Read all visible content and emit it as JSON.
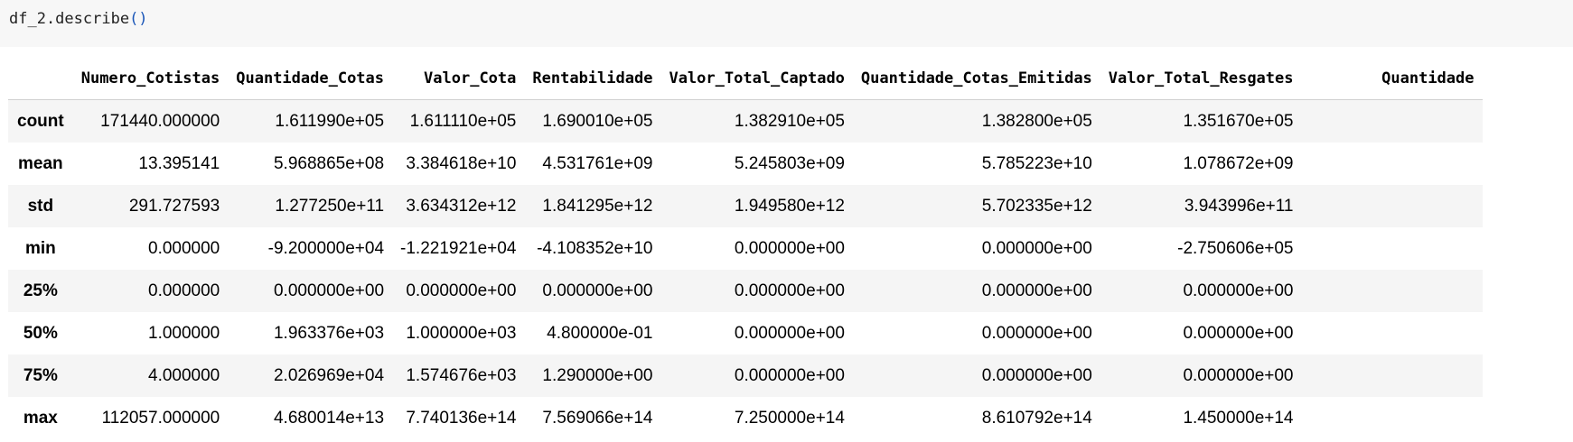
{
  "code_cell": {
    "prefix": "df_2.describe",
    "parens": "()"
  },
  "table": {
    "columns": [
      "",
      "Numero_Cotistas",
      "Quantidade_Cotas",
      "Valor_Cota",
      "Rentabilidade",
      "Valor_Total_Captado",
      "Quantidade_Cotas_Emitidas",
      "Valor_Total_Resgates",
      "Quantidade"
    ],
    "rows": [
      {
        "label": "count",
        "values": [
          "171440.000000",
          "1.611990e+05",
          "1.611110e+05",
          "1.690010e+05",
          "1.382910e+05",
          "1.382800e+05",
          "1.351670e+05",
          ""
        ]
      },
      {
        "label": "mean",
        "values": [
          "13.395141",
          "5.968865e+08",
          "3.384618e+10",
          "4.531761e+09",
          "5.245803e+09",
          "5.785223e+10",
          "1.078672e+09",
          ""
        ]
      },
      {
        "label": "std",
        "values": [
          "291.727593",
          "1.277250e+11",
          "3.634312e+12",
          "1.841295e+12",
          "1.949580e+12",
          "5.702335e+12",
          "3.943996e+11",
          ""
        ]
      },
      {
        "label": "min",
        "values": [
          "0.000000",
          "-9.200000e+04",
          "-1.221921e+04",
          "-4.108352e+10",
          "0.000000e+00",
          "0.000000e+00",
          "-2.750606e+05",
          ""
        ]
      },
      {
        "label": "25%",
        "values": [
          "0.000000",
          "0.000000e+00",
          "0.000000e+00",
          "0.000000e+00",
          "0.000000e+00",
          "0.000000e+00",
          "0.000000e+00",
          ""
        ]
      },
      {
        "label": "50%",
        "values": [
          "1.000000",
          "1.963376e+03",
          "1.000000e+03",
          "4.800000e-01",
          "0.000000e+00",
          "0.000000e+00",
          "0.000000e+00",
          ""
        ]
      },
      {
        "label": "75%",
        "values": [
          "4.000000",
          "2.026969e+04",
          "1.574676e+03",
          "1.290000e+00",
          "0.000000e+00",
          "0.000000e+00",
          "0.000000e+00",
          ""
        ]
      },
      {
        "label": "max",
        "values": [
          "112057.000000",
          "4.680014e+13",
          "7.740136e+14",
          "7.569066e+14",
          "7.250000e+14",
          "8.610792e+14",
          "1.450000e+14",
          ""
        ]
      }
    ]
  }
}
